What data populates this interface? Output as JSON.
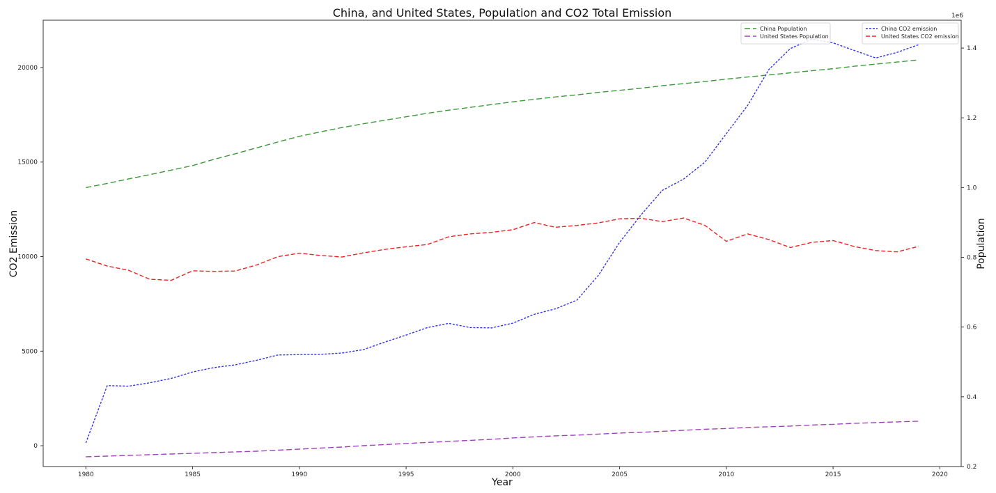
{
  "chart_data": {
    "type": "line",
    "title": "China, and United States, Population and CO2 Total Emission",
    "xlabel": "Year",
    "ylabel_left": "CO2 Emission",
    "ylabel_right": "Population",
    "right_axis_multiplier": "1e6",
    "xlim": [
      1978,
      2021
    ],
    "ylim_left": [
      -1100,
      22500
    ],
    "ylim_right": [
      0.2,
      1.48
    ],
    "x_ticks": [
      1980,
      1985,
      1990,
      1995,
      2000,
      2005,
      2010,
      2015,
      2020
    ],
    "x_tick_labels": [
      "1980",
      "1985",
      "1990",
      "1995",
      "2000",
      "2005",
      "2010",
      "2015",
      "2020"
    ],
    "y_left_ticks": [
      0,
      5000,
      10000,
      15000,
      20000
    ],
    "y_left_tick_labels": [
      "0",
      "5000",
      "10000",
      "15000",
      "20000"
    ],
    "y_right_ticks": [
      0.2,
      0.4,
      0.6,
      0.8,
      1.0,
      1.2,
      1.4
    ],
    "y_right_tick_labels": [
      "0.2",
      "0.4",
      "0.6",
      "0.8",
      "1.0",
      "1.2",
      "1.4"
    ],
    "grid": false,
    "x": [
      1980,
      1981,
      1982,
      1983,
      1984,
      1985,
      1986,
      1987,
      1988,
      1989,
      1990,
      1991,
      1992,
      1993,
      1994,
      1995,
      1996,
      1997,
      1998,
      1999,
      2000,
      2001,
      2002,
      2003,
      2004,
      2005,
      2006,
      2007,
      2008,
      2009,
      2010,
      2011,
      2012,
      2013,
      2014,
      2015,
      2016,
      2017,
      2018,
      2019
    ],
    "legends": [
      {
        "placement": "top-center-right",
        "entries": [
          {
            "label": "China Population",
            "series": "China Population"
          },
          {
            "label": "United States Population",
            "series": "United States Population"
          }
        ]
      },
      {
        "placement": "top-right",
        "entries": [
          {
            "label": "China CO2 emission",
            "series": "China CO2 emission"
          },
          {
            "label": "United States CO2 emission",
            "series": "United States CO2 emission"
          }
        ]
      }
    ],
    "series": [
      {
        "name": "China Population",
        "axis": "right",
        "color": "#3a9a3a",
        "dash": "8,4",
        "values": [
          1.0,
          1.012,
          1.025,
          1.037,
          1.05,
          1.063,
          1.081,
          1.097,
          1.114,
          1.131,
          1.147,
          1.16,
          1.172,
          1.183,
          1.193,
          1.203,
          1.213,
          1.222,
          1.23,
          1.238,
          1.246,
          1.253,
          1.26,
          1.266,
          1.273,
          1.279,
          1.285,
          1.292,
          1.298,
          1.304,
          1.311,
          1.317,
          1.323,
          1.329,
          1.335,
          1.341,
          1.348,
          1.354,
          1.36,
          1.366
        ]
      },
      {
        "name": "United States Population",
        "axis": "right",
        "color": "#a040c0",
        "dash": "8,4",
        "values": [
          0.228,
          0.23,
          0.232,
          0.234,
          0.236,
          0.238,
          0.24,
          0.242,
          0.244,
          0.247,
          0.25,
          0.253,
          0.256,
          0.26,
          0.263,
          0.266,
          0.269,
          0.272,
          0.275,
          0.278,
          0.282,
          0.285,
          0.288,
          0.29,
          0.293,
          0.296,
          0.298,
          0.301,
          0.304,
          0.307,
          0.309,
          0.312,
          0.314,
          0.316,
          0.319,
          0.321,
          0.324,
          0.326,
          0.328,
          0.33
        ]
      },
      {
        "name": "China CO2 emission",
        "axis": "left",
        "color": "#3333ee",
        "dash": "3,2",
        "values": [
          150,
          3180,
          3150,
          3330,
          3560,
          3900,
          4130,
          4280,
          4520,
          4800,
          4820,
          4830,
          4900,
          5080,
          5480,
          5850,
          6250,
          6470,
          6250,
          6230,
          6480,
          6950,
          7240,
          7700,
          9000,
          10750,
          12200,
          13500,
          14100,
          15000,
          16500,
          18000,
          19900,
          21000,
          21500,
          21300,
          20900,
          20500,
          20800,
          21200
        ]
      },
      {
        "name": "United States CO2 emission",
        "axis": "left",
        "color": "#ee2222",
        "dash": "6,3",
        "values": [
          9880,
          9500,
          9280,
          8800,
          8750,
          9250,
          9220,
          9240,
          9560,
          10000,
          10180,
          10060,
          9980,
          10200,
          10380,
          10520,
          10640,
          11050,
          11200,
          11280,
          11420,
          11800,
          11550,
          11650,
          11780,
          12000,
          12030,
          11850,
          12040,
          11650,
          10810,
          11200,
          10900,
          10480,
          10750,
          10850,
          10530,
          10320,
          10250,
          10540
        ]
      }
    ]
  }
}
